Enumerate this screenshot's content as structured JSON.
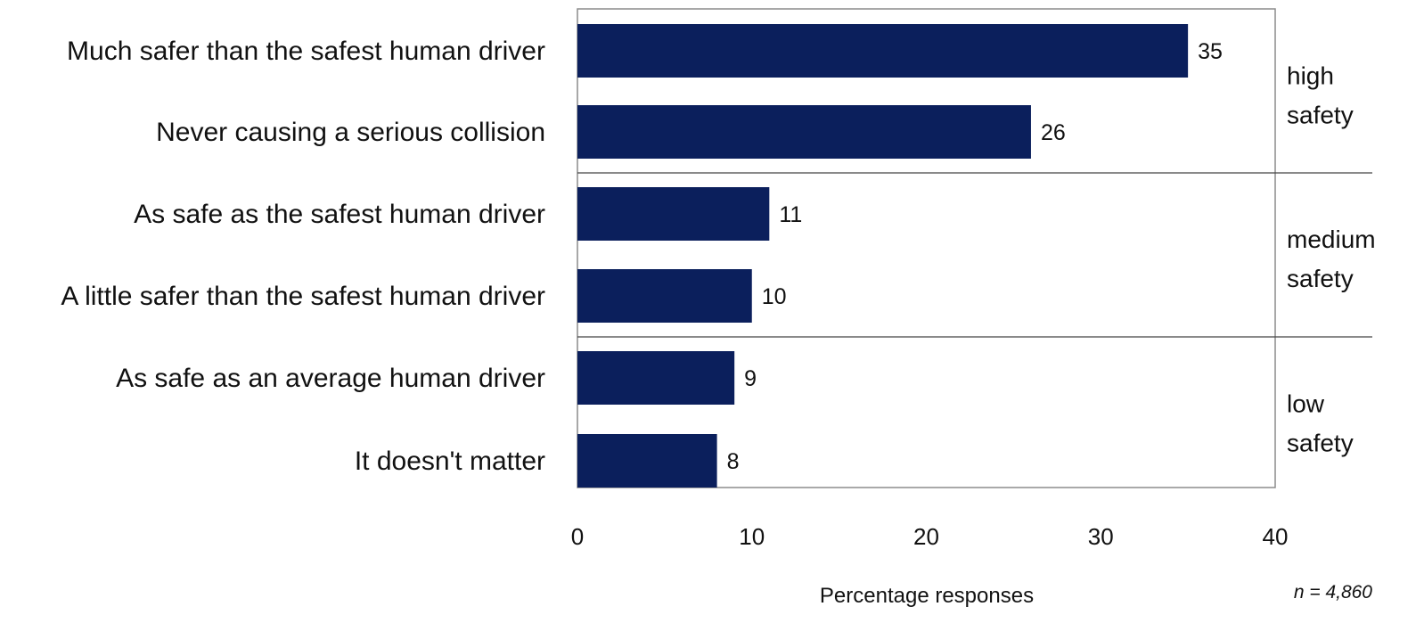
{
  "chart_data": {
    "type": "bar",
    "orientation": "horizontal",
    "categories": [
      "Much safer than the safest human driver",
      "Never causing a serious collision",
      "As safe as the safest human driver",
      "A little safer than the safest human driver",
      "As safe as an average human driver",
      "It doesn't matter"
    ],
    "values": [
      35,
      26,
      11,
      10,
      9,
      8
    ],
    "bar_color": "#0b1f5c",
    "xlabel": "Percentage responses",
    "ylabel": "",
    "xlim": [
      0,
      40
    ],
    "xticks": [
      "0",
      "10",
      "20",
      "30",
      "40"
    ],
    "grid": false,
    "groups": [
      {
        "label_lines": [
          "high",
          "safety"
        ],
        "categories": [
          0,
          1
        ]
      },
      {
        "label_lines": [
          "medium",
          "safety"
        ],
        "categories": [
          2,
          3
        ]
      },
      {
        "label_lines": [
          "low",
          "safety"
        ],
        "categories": [
          4,
          5
        ]
      }
    ],
    "annotation": "n = 4,860"
  }
}
